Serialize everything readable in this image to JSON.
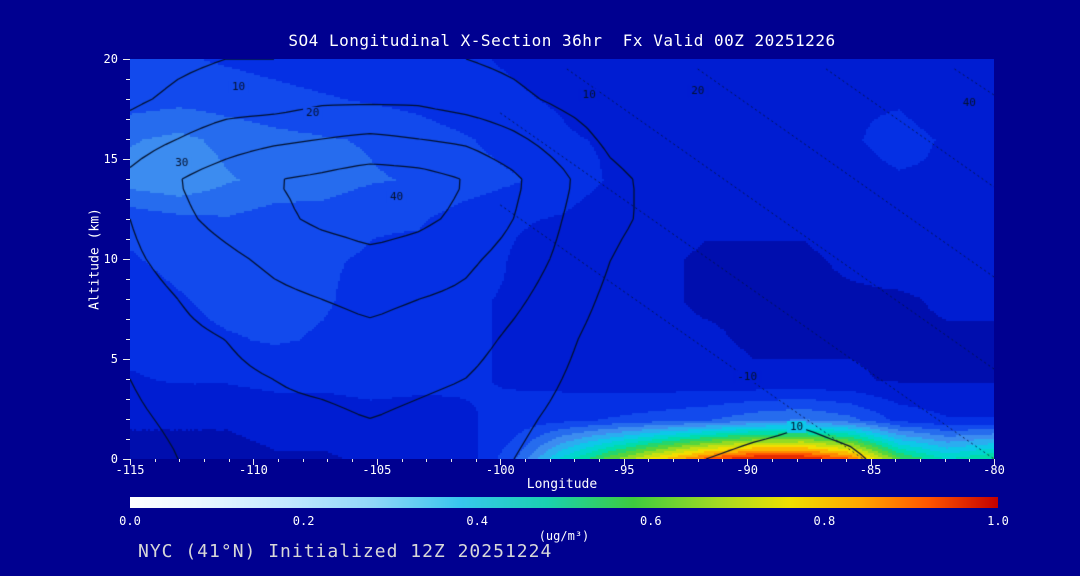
{
  "title": "SO4 Longitudinal X-Section 36hr  Fx Valid 00Z 20251226",
  "footer": "NYC (41°N) Initialized 12Z 20251224",
  "axes": {
    "x": {
      "label": "Longitude",
      "min": -115,
      "max": -80,
      "tick_values": [
        -115,
        -110,
        -105,
        -100,
        -95,
        -90,
        -85,
        -80
      ],
      "tick_labels": [
        "-115",
        "-110",
        "-105",
        "-100",
        "-95",
        "-90",
        "-85",
        "-80"
      ],
      "minor_step": 1
    },
    "y": {
      "label": "Altitude (km)",
      "min": 0,
      "max": 20,
      "tick_values": [
        0,
        5,
        10,
        15,
        20
      ],
      "tick_labels": [
        "0",
        "5",
        "10",
        "15",
        "20"
      ],
      "minor_step": 1
    }
  },
  "colorbar": {
    "units": "(ug/m³)",
    "min": 0,
    "max": 1,
    "tick_labels": [
      "0.0",
      "0.2",
      "0.4",
      "0.6",
      "0.8",
      "1.0"
    ],
    "stops": [
      [
        0.0,
        "#ffffff"
      ],
      [
        0.08,
        "#eaf7ff"
      ],
      [
        0.18,
        "#c2e8ff"
      ],
      [
        0.28,
        "#90d6f8"
      ],
      [
        0.38,
        "#38c6ee"
      ],
      [
        0.48,
        "#1ad2b0"
      ],
      [
        0.58,
        "#3ecc3e"
      ],
      [
        0.68,
        "#a6da22"
      ],
      [
        0.76,
        "#f0e000"
      ],
      [
        0.84,
        "#ffa800"
      ],
      [
        0.92,
        "#ff5500"
      ],
      [
        1.0,
        "#c40000"
      ]
    ]
  },
  "colors": {
    "background": "#000090",
    "text": "#ffffff",
    "footer_text": "#d8d8d8",
    "contour_line": "#02102c",
    "dotted_line": "rgba(4,18,60,0.85)",
    "tick_mark": "#e8e8e8"
  },
  "chart_data": {
    "type": "heatmap",
    "title": "SO4 Longitudinal X-Section 36hr Fx Valid 00Z 20251226",
    "xlabel": "Longitude",
    "ylabel": "Altitude (km)",
    "x_range": [
      -115,
      -80
    ],
    "y_range": [
      0,
      20
    ],
    "fill_units": "ug/m3",
    "fill_range": [
      0,
      1
    ],
    "fill_grid": {
      "nx": 19,
      "ny": 11,
      "order": "rows from 0 km (bottom) to 20 km (top); columns -115 to -80 deg lon",
      "values": [
        [
          0.06,
          0.06,
          0.06,
          0.07,
          0.07,
          0.08,
          0.08,
          0.1,
          0.22,
          0.45,
          0.62,
          0.78,
          0.92,
          1.0,
          1.0,
          0.9,
          0.6,
          0.48,
          0.55
        ],
        [
          0.08,
          0.08,
          0.08,
          0.09,
          0.09,
          0.1,
          0.1,
          0.12,
          0.14,
          0.16,
          0.18,
          0.2,
          0.22,
          0.26,
          0.28,
          0.24,
          0.16,
          0.13,
          0.13
        ],
        [
          0.12,
          0.13,
          0.13,
          0.14,
          0.14,
          0.15,
          0.14,
          0.13,
          0.12,
          0.11,
          0.1,
          0.09,
          0.09,
          0.08,
          0.08,
          0.08,
          0.07,
          0.07,
          0.07
        ],
        [
          0.14,
          0.16,
          0.17,
          0.18,
          0.17,
          0.16,
          0.15,
          0.13,
          0.12,
          0.1,
          0.09,
          0.08,
          0.08,
          0.07,
          0.07,
          0.07,
          0.07,
          0.07,
          0.07
        ],
        [
          0.15,
          0.17,
          0.19,
          0.19,
          0.18,
          0.16,
          0.15,
          0.13,
          0.12,
          0.1,
          0.08,
          0.08,
          0.07,
          0.07,
          0.07,
          0.07,
          0.07,
          0.08,
          0.08
        ],
        [
          0.17,
          0.19,
          0.2,
          0.19,
          0.18,
          0.17,
          0.16,
          0.15,
          0.12,
          0.1,
          0.09,
          0.08,
          0.07,
          0.07,
          0.07,
          0.08,
          0.09,
          0.09,
          0.09
        ],
        [
          0.19,
          0.21,
          0.22,
          0.2,
          0.2,
          0.18,
          0.18,
          0.15,
          0.13,
          0.12,
          0.1,
          0.09,
          0.08,
          0.08,
          0.08,
          0.09,
          0.1,
          0.11,
          0.11
        ],
        [
          0.3,
          0.32,
          0.28,
          0.26,
          0.25,
          0.23,
          0.22,
          0.2,
          0.18,
          0.15,
          0.12,
          0.11,
          0.1,
          0.1,
          0.1,
          0.11,
          0.12,
          0.12,
          0.12
        ],
        [
          0.27,
          0.29,
          0.26,
          0.24,
          0.23,
          0.22,
          0.2,
          0.18,
          0.15,
          0.13,
          0.12,
          0.1,
          0.1,
          0.1,
          0.11,
          0.12,
          0.14,
          0.12,
          0.11
        ],
        [
          0.2,
          0.21,
          0.2,
          0.19,
          0.18,
          0.17,
          0.16,
          0.14,
          0.13,
          0.12,
          0.1,
          0.1,
          0.1,
          0.1,
          0.11,
          0.12,
          0.12,
          0.1,
          0.1
        ],
        [
          0.18,
          0.18,
          0.17,
          0.16,
          0.15,
          0.15,
          0.14,
          0.13,
          0.12,
          0.11,
          0.1,
          0.1,
          0.1,
          0.1,
          0.1,
          0.1,
          0.1,
          0.09,
          0.09
        ]
      ]
    },
    "fill_colormap": [
      [
        0.0,
        "#000082"
      ],
      [
        0.08,
        "#0016c8"
      ],
      [
        0.12,
        "#0024dc"
      ],
      [
        0.18,
        "#0a3cec"
      ],
      [
        0.24,
        "#2266ee"
      ],
      [
        0.3,
        "#3c8cf0"
      ],
      [
        0.36,
        "#28b4f0"
      ],
      [
        0.42,
        "#00d2e6"
      ],
      [
        0.5,
        "#00dcaa"
      ],
      [
        0.58,
        "#3cd246"
      ],
      [
        0.66,
        "#a0dc1e"
      ],
      [
        0.74,
        "#f0e600"
      ],
      [
        0.82,
        "#ffaa00"
      ],
      [
        0.9,
        "#ff5500"
      ],
      [
        1.0,
        "#cc0000"
      ]
    ],
    "contour_levels": [
      10,
      20,
      30,
      40
    ],
    "contour_grid": {
      "nx": 19,
      "ny": 11,
      "order": "rows from 0 km (bottom) to 20 km (top); columns -115 to -80 deg lon",
      "values": [
        [
          5,
          10,
          12,
          15,
          15,
          18,
          15,
          14,
          10,
          6,
          3,
          2,
          10,
          13,
          14,
          12,
          6,
          2,
          2
        ],
        [
          8,
          12,
          15,
          18,
          18,
          20,
          18,
          16,
          12,
          8,
          4,
          2,
          3,
          6,
          9,
          6,
          2,
          2,
          2
        ],
        [
          10,
          15,
          18,
          20,
          22,
          24,
          22,
          20,
          15,
          10,
          5,
          3,
          2,
          2,
          2,
          2,
          2,
          2,
          2
        ],
        [
          12,
          18,
          20,
          24,
          26,
          28,
          26,
          24,
          18,
          12,
          6,
          4,
          2,
          2,
          2,
          2,
          2,
          2,
          2
        ],
        [
          15,
          20,
          24,
          28,
          30,
          32,
          30,
          28,
          22,
          15,
          8,
          5,
          3,
          2,
          2,
          2,
          2,
          2,
          2
        ],
        [
          18,
          24,
          28,
          32,
          35,
          38,
          36,
          32,
          26,
          18,
          10,
          6,
          4,
          2,
          2,
          2,
          2,
          2,
          2
        ],
        [
          20,
          28,
          33,
          38,
          42,
          44,
          42,
          38,
          30,
          20,
          12,
          8,
          5,
          3,
          2,
          2,
          2,
          2,
          2
        ],
        [
          22,
          30,
          35,
          40,
          42,
          45,
          44,
          40,
          32,
          22,
          12,
          8,
          5,
          3,
          2,
          2,
          2,
          2,
          2
        ],
        [
          15,
          20,
          25,
          28,
          30,
          32,
          30,
          28,
          22,
          15,
          8,
          5,
          3,
          2,
          2,
          2,
          2,
          2,
          2
        ],
        [
          8,
          12,
          15,
          15,
          18,
          18,
          18,
          15,
          12,
          8,
          5,
          3,
          2,
          2,
          2,
          2,
          2,
          2,
          2
        ],
        [
          5,
          8,
          10,
          10,
          12,
          12,
          12,
          10,
          8,
          5,
          3,
          2,
          2,
          2,
          2,
          2,
          2,
          2,
          2
        ]
      ]
    },
    "dotted_contours": [
      {
        "level": -10,
        "a": [
          -100,
          12.7
        ],
        "b": [
          -85.3,
          0
        ]
      },
      {
        "level": 0,
        "a": [
          -100,
          17.3
        ],
        "b": [
          -80,
          0
        ]
      },
      {
        "level": 10,
        "a": [
          -97.3,
          19.5
        ],
        "b": [
          -80,
          4.5
        ]
      },
      {
        "level": 20,
        "a": [
          -92.0,
          19.5
        ],
        "b": [
          -80,
          9.1
        ]
      },
      {
        "level": 30,
        "a": [
          -86.8,
          19.5
        ],
        "b": [
          -80,
          13.6
        ]
      },
      {
        "level": 40,
        "a": [
          -81.6,
          19.5
        ],
        "b": [
          -80,
          18.2
        ]
      }
    ],
    "contour_labels": [
      {
        "t": "10",
        "lon": -110.6,
        "alt": 18.6
      },
      {
        "t": "20",
        "lon": -107.6,
        "alt": 17.3
      },
      {
        "t": "30",
        "lon": -112.9,
        "alt": 14.8
      },
      {
        "t": "40",
        "lon": -104.2,
        "alt": 13.1
      },
      {
        "t": "10",
        "lon": -96.4,
        "alt": 18.2
      },
      {
        "t": "20",
        "lon": -92.0,
        "alt": 18.4
      },
      {
        "t": "40",
        "lon": -81.0,
        "alt": 17.8
      },
      {
        "t": "-10",
        "lon": -90.0,
        "alt": 4.1
      },
      {
        "t": "10",
        "lon": -88.0,
        "alt": 1.6
      }
    ]
  }
}
